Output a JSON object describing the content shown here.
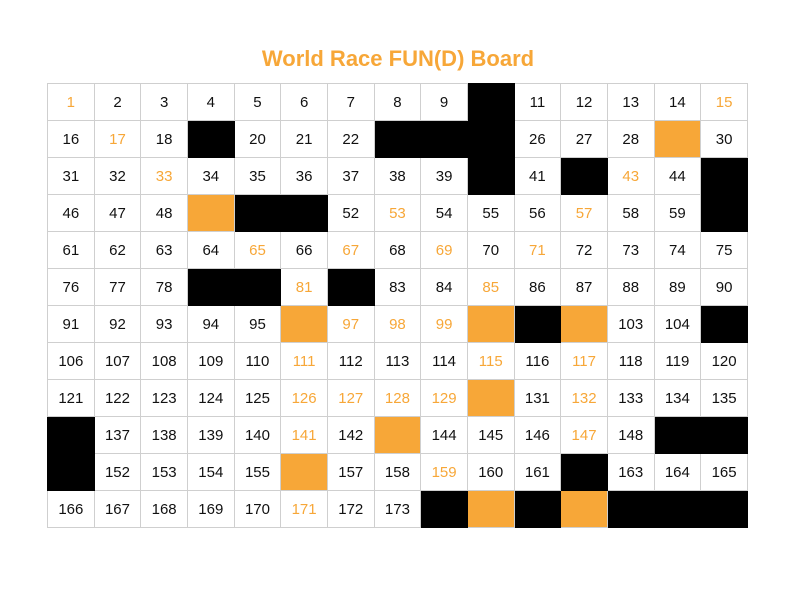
{
  "title": "World Race FUN(D) Board",
  "colors": {
    "accent": "#F7A738",
    "block": "#000000",
    "text": "#111111",
    "grid": "#cfcfcf"
  },
  "board": {
    "rows": [
      [
        [
          "1",
          "orange-text"
        ],
        [
          "2",
          "text"
        ],
        [
          "3",
          "text"
        ],
        [
          "4",
          "text"
        ],
        [
          "5",
          "text"
        ],
        [
          "6",
          "text"
        ],
        [
          "7",
          "text"
        ],
        [
          "8",
          "text"
        ],
        [
          "9",
          "text"
        ],
        [
          "",
          "black"
        ],
        [
          "11",
          "text"
        ],
        [
          "12",
          "text"
        ],
        [
          "13",
          "text"
        ],
        [
          "14",
          "text"
        ],
        [
          "15",
          "orange-text"
        ]
      ],
      [
        [
          "16",
          "text"
        ],
        [
          "17",
          "orange-text"
        ],
        [
          "18",
          "text"
        ],
        [
          "",
          "black"
        ],
        [
          "20",
          "text"
        ],
        [
          "21",
          "text"
        ],
        [
          "22",
          "text"
        ],
        [
          "",
          "black"
        ],
        [
          "",
          "black"
        ],
        [
          "",
          "black"
        ],
        [
          "26",
          "text"
        ],
        [
          "27",
          "text"
        ],
        [
          "28",
          "text"
        ],
        [
          "",
          "orange"
        ],
        [
          "30",
          "text"
        ]
      ],
      [
        [
          "31",
          "text"
        ],
        [
          "32",
          "text"
        ],
        [
          "33",
          "orange-text"
        ],
        [
          "34",
          "text"
        ],
        [
          "35",
          "text"
        ],
        [
          "36",
          "text"
        ],
        [
          "37",
          "text"
        ],
        [
          "38",
          "text"
        ],
        [
          "39",
          "text"
        ],
        [
          "",
          "black"
        ],
        [
          "41",
          "text"
        ],
        [
          "",
          "black"
        ],
        [
          "43",
          "orange-text"
        ],
        [
          "44",
          "text"
        ],
        [
          "",
          "black"
        ]
      ],
      [
        [
          "46",
          "text"
        ],
        [
          "47",
          "text"
        ],
        [
          "48",
          "text"
        ],
        [
          "",
          "orange"
        ],
        [
          "",
          "black"
        ],
        [
          "",
          "black"
        ],
        [
          "52",
          "text"
        ],
        [
          "53",
          "orange-text"
        ],
        [
          "54",
          "text"
        ],
        [
          "55",
          "text"
        ],
        [
          "56",
          "text"
        ],
        [
          "57",
          "orange-text"
        ],
        [
          "58",
          "text"
        ],
        [
          "59",
          "text"
        ],
        [
          "",
          "black"
        ]
      ],
      [
        [
          "61",
          "text"
        ],
        [
          "62",
          "text"
        ],
        [
          "63",
          "text"
        ],
        [
          "64",
          "text"
        ],
        [
          "65",
          "orange-text"
        ],
        [
          "66",
          "text"
        ],
        [
          "67",
          "orange-text"
        ],
        [
          "68",
          "text"
        ],
        [
          "69",
          "orange-text"
        ],
        [
          "70",
          "text"
        ],
        [
          "71",
          "orange-text"
        ],
        [
          "72",
          "text"
        ],
        [
          "73",
          "text"
        ],
        [
          "74",
          "text"
        ],
        [
          "75",
          "text"
        ]
      ],
      [
        [
          "76",
          "text"
        ],
        [
          "77",
          "text"
        ],
        [
          "78",
          "text"
        ],
        [
          "",
          "black"
        ],
        [
          "",
          "black"
        ],
        [
          "81",
          "orange-text"
        ],
        [
          "",
          "black"
        ],
        [
          "83",
          "text"
        ],
        [
          "84",
          "text"
        ],
        [
          "85",
          "orange-text"
        ],
        [
          "86",
          "text"
        ],
        [
          "87",
          "text"
        ],
        [
          "88",
          "text"
        ],
        [
          "89",
          "text"
        ],
        [
          "90",
          "text"
        ]
      ],
      [
        [
          "91",
          "text"
        ],
        [
          "92",
          "text"
        ],
        [
          "93",
          "text"
        ],
        [
          "94",
          "text"
        ],
        [
          "95",
          "text"
        ],
        [
          "",
          "orange"
        ],
        [
          "97",
          "orange-text"
        ],
        [
          "98",
          "orange-text"
        ],
        [
          "99",
          "orange-text"
        ],
        [
          "",
          "orange"
        ],
        [
          "",
          "black"
        ],
        [
          "",
          "orange"
        ],
        [
          "103",
          "text"
        ],
        [
          "104",
          "text"
        ],
        [
          "",
          "black"
        ]
      ],
      [
        [
          "106",
          "text"
        ],
        [
          "107",
          "text"
        ],
        [
          "108",
          "text"
        ],
        [
          "109",
          "text"
        ],
        [
          "110",
          "text"
        ],
        [
          "111",
          "orange-text"
        ],
        [
          "112",
          "text"
        ],
        [
          "113",
          "text"
        ],
        [
          "114",
          "text"
        ],
        [
          "115",
          "orange-text"
        ],
        [
          "116",
          "text"
        ],
        [
          "117",
          "orange-text"
        ],
        [
          "118",
          "text"
        ],
        [
          "119",
          "text"
        ],
        [
          "120",
          "text"
        ]
      ],
      [
        [
          "121",
          "text"
        ],
        [
          "122",
          "text"
        ],
        [
          "123",
          "text"
        ],
        [
          "124",
          "text"
        ],
        [
          "125",
          "text"
        ],
        [
          "126",
          "orange-text"
        ],
        [
          "127",
          "orange-text"
        ],
        [
          "128",
          "orange-text"
        ],
        [
          "129",
          "orange-text"
        ],
        [
          "",
          "orange"
        ],
        [
          "131",
          "text"
        ],
        [
          "132",
          "orange-text"
        ],
        [
          "133",
          "text"
        ],
        [
          "134",
          "text"
        ],
        [
          "135",
          "text"
        ]
      ],
      [
        [
          "",
          "black"
        ],
        [
          "137",
          "text"
        ],
        [
          "138",
          "text"
        ],
        [
          "139",
          "text"
        ],
        [
          "140",
          "text"
        ],
        [
          "141",
          "orange-text"
        ],
        [
          "142",
          "text"
        ],
        [
          "",
          "orange"
        ],
        [
          "144",
          "text"
        ],
        [
          "145",
          "text"
        ],
        [
          "146",
          "text"
        ],
        [
          "147",
          "orange-text"
        ],
        [
          "148",
          "text"
        ],
        [
          "",
          "black"
        ],
        [
          "",
          "black"
        ]
      ],
      [
        [
          "",
          "black"
        ],
        [
          "152",
          "text"
        ],
        [
          "153",
          "text"
        ],
        [
          "154",
          "text"
        ],
        [
          "155",
          "text"
        ],
        [
          "",
          "orange"
        ],
        [
          "157",
          "text"
        ],
        [
          "158",
          "text"
        ],
        [
          "159",
          "orange-text"
        ],
        [
          "160",
          "text"
        ],
        [
          "161",
          "text"
        ],
        [
          "",
          "black"
        ],
        [
          "163",
          "text"
        ],
        [
          "164",
          "text"
        ],
        [
          "165",
          "text"
        ]
      ],
      [
        [
          "166",
          "text"
        ],
        [
          "167",
          "text"
        ],
        [
          "168",
          "text"
        ],
        [
          "169",
          "text"
        ],
        [
          "170",
          "text"
        ],
        [
          "171",
          "orange-text"
        ],
        [
          "172",
          "text"
        ],
        [
          "173",
          "text"
        ],
        [
          "",
          "black"
        ],
        [
          "",
          "orange"
        ],
        [
          "",
          "black"
        ],
        [
          "",
          "orange"
        ],
        [
          "",
          "black"
        ],
        [
          "",
          "black"
        ],
        [
          "",
          "black"
        ]
      ]
    ]
  }
}
